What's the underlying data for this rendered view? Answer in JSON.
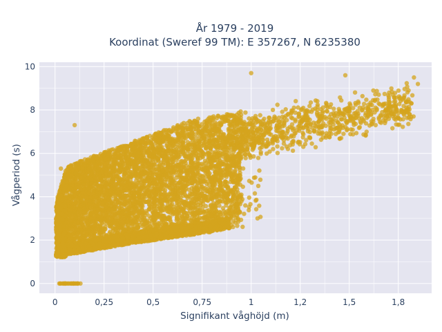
{
  "chart_data": {
    "type": "scatter",
    "title_line1": "År 1979 - 2019",
    "title_line2": "Koordinat (Sweref 99 TM): E 357267, N 6235380",
    "xlabel": "Signifikant våghöjd (m)",
    "ylabel": "Vågperiod (s)",
    "xlim": [
      -0.08,
      1.92
    ],
    "ylim": [
      -0.45,
      10.2
    ],
    "x_ticks": [
      0,
      0.25,
      0.5,
      0.75,
      1,
      1.25,
      1.5,
      1.75
    ],
    "x_tick_labels": [
      "0",
      "0,25",
      "0,5",
      "0,75",
      "1",
      "1,2",
      "1,5",
      "1,8"
    ],
    "y_ticks": [
      0,
      2,
      4,
      6,
      8,
      10
    ],
    "y_tick_labels": [
      "0",
      "2",
      "4",
      "6",
      "8",
      "10"
    ],
    "grid": true,
    "colors": {
      "marker": "#d4a41e",
      "plot_bg": "#e5e5f0",
      "grid": "#ffffff",
      "text": "#2a3f5f"
    },
    "point_cloud": {
      "dense_region": {
        "x_range": [
          0.01,
          0.95
        ],
        "y_lower_at_x0": 1.2,
        "y_upper_at_x0": 3.6
      },
      "zero_period_points": {
        "x_range": [
          0.02,
          0.13
        ],
        "y": 0
      },
      "sparse_tail": {
        "x_range": [
          0.95,
          1.85
        ],
        "y_range": [
          6.0,
          9.6
        ]
      },
      "notable_points": [
        {
          "x": 1.83,
          "y": 9.5
        },
        {
          "x": 1.85,
          "y": 9.2
        },
        {
          "x": 1.48,
          "y": 9.6
        },
        {
          "x": 1.0,
          "y": 9.7
        },
        {
          "x": 0.1,
          "y": 7.3
        },
        {
          "x": 0.97,
          "y": 3.6
        },
        {
          "x": 0.9,
          "y": 2.7
        },
        {
          "x": 0.03,
          "y": 5.3
        }
      ]
    }
  }
}
